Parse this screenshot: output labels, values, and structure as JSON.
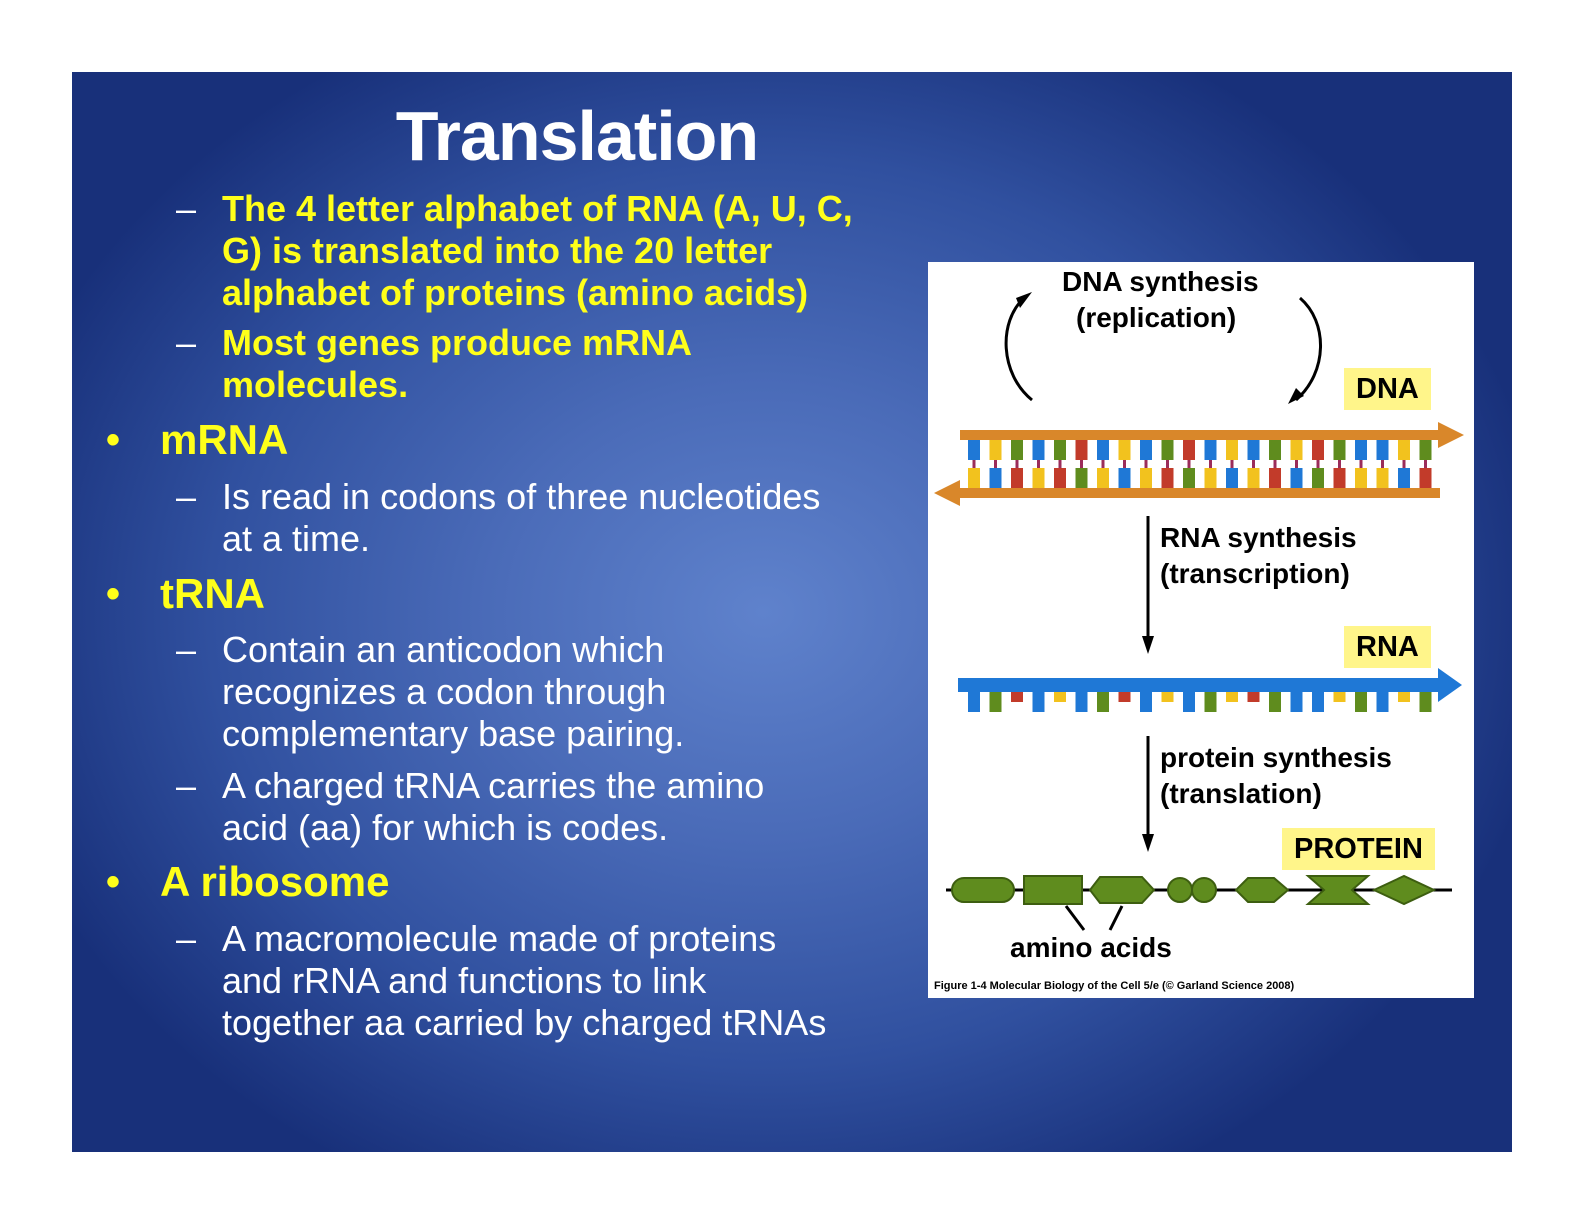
{
  "title": "Translation",
  "intro_points": [
    {
      "lines": [
        "The 4 letter alphabet of RNA (A, U, C,",
        "G) is translated into the 20 letter",
        "alphabet of proteins (amino acids)"
      ]
    },
    {
      "lines": [
        "Most genes produce mRNA",
        "molecules."
      ]
    }
  ],
  "sections": [
    {
      "heading": "mRNA",
      "points": [
        {
          "lines": [
            "Is read in codons of three nucleotides",
            "at a time."
          ]
        }
      ]
    },
    {
      "heading": "tRNA",
      "points": [
        {
          "lines": [
            "Contain an anticodon which",
            "recognizes a codon through",
            "complementary base pairing."
          ]
        },
        {
          "lines": [
            "A charged tRNA carries the amino",
            "acid (aa) for which is codes."
          ]
        }
      ]
    },
    {
      "heading": "A ribosome",
      "points": [
        {
          "lines": [
            "A macromolecule made of proteins",
            "and rRNA and functions to link",
            "together aa carried by charged tRNAs"
          ]
        }
      ]
    }
  ],
  "dash_symbol": "–",
  "bullet_symbol": "•",
  "figure": {
    "dna_synthesis": [
      "DNA synthesis",
      "(replication)"
    ],
    "rna_synthesis": [
      "RNA synthesis",
      "(transcription)"
    ],
    "protein_synthesis": [
      "protein synthesis",
      "(translation)"
    ],
    "dna_tag": "DNA",
    "rna_tag": "RNA",
    "protein_tag": "PROTEIN",
    "amino_acids_label": "amino acids",
    "caption": "Figure 1-4  Molecular Biology of the Cell 5/e (© Garland Science 2008)"
  },
  "colors": {
    "highlight_text": "#ffff1a",
    "body_text": "#ffffff",
    "slide_background": "#3a5aa8",
    "tag_background": "#fff58a",
    "dna_backbone": "#d9872a",
    "rna_backbone": "#1f78d6",
    "protein_green": "#5f8c1e"
  }
}
